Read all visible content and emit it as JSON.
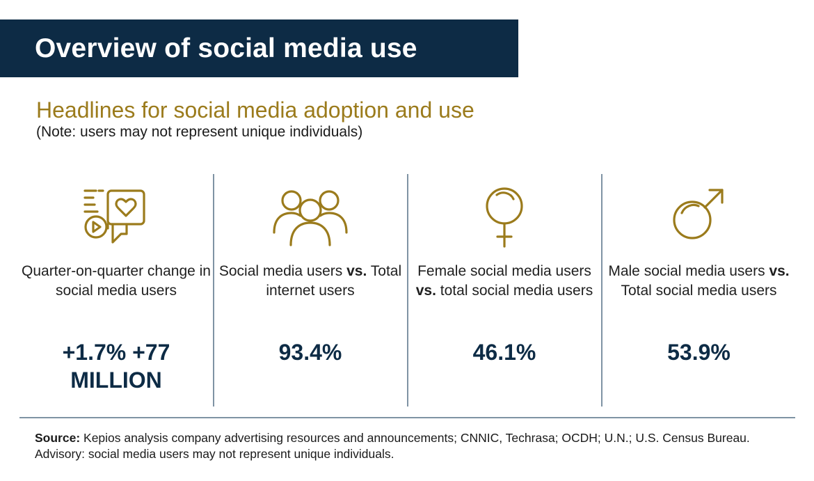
{
  "header": {
    "title": "Overview of social media use"
  },
  "subtitle": "Headlines for social media adoption and use",
  "note": "(Note: users may not represent unique individuals)",
  "stats": [
    {
      "icon": "social-chat-icon",
      "label": "Quarter-on-quarter change in social media users",
      "value": "+1.7% +77 MILLION"
    },
    {
      "icon": "users-group-icon",
      "label_pre": "Social media users ",
      "label_bold": "vs.",
      "label_post": " Total internet users",
      "value": "93.4%"
    },
    {
      "icon": "female-symbol-icon",
      "label_pre": "Female social media users ",
      "label_bold": "vs.",
      "label_post": " total social media users",
      "value": "46.1%"
    },
    {
      "icon": "male-symbol-icon",
      "label_pre": "Male social media users ",
      "label_bold": "vs.",
      "label_post": " Total social media users",
      "value": "53.9%"
    }
  ],
  "footer": {
    "source_label": "Source:",
    "source_text": " Kepios analysis company advertising resources and announcements; CNNIC, Techrasa; OCDH; U.N.; U.S. Census Bureau. Advisory: social media users may not represent unique individuals."
  },
  "colors": {
    "navy": "#0d2b45",
    "gold": "#9b7b1c",
    "divider": "#7f93a4"
  }
}
